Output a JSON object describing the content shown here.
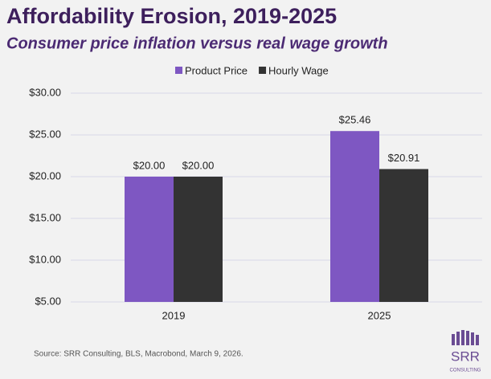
{
  "chart_data": {
    "type": "bar",
    "title": "Affordability Erosion, 2019-2025",
    "subtitle": "Consumer price inflation versus real wage growth",
    "categories": [
      "2019",
      "2025"
    ],
    "series": [
      {
        "name": "Product Price",
        "color": "#7e57c2",
        "values": [
          20.0,
          25.46
        ],
        "value_labels": [
          "$20.00",
          "$25.46"
        ]
      },
      {
        "name": "Hourly Wage",
        "color": "#333333",
        "values": [
          20.0,
          20.91
        ],
        "value_labels": [
          "$20.00",
          "$20.91"
        ]
      }
    ],
    "ylim": [
      5,
      30
    ],
    "yticks": [
      {
        "value": 5,
        "label": "$5.00"
      },
      {
        "value": 10,
        "label": "$10.00"
      },
      {
        "value": 15,
        "label": "$15.00"
      },
      {
        "value": 20,
        "label": "$20.00"
      },
      {
        "value": 25,
        "label": "$25.00"
      },
      {
        "value": 30,
        "label": "$30.00"
      }
    ],
    "grid": true,
    "legend": "top",
    "source": "Source: SRR Consulting, BLS, Macrobond, March 9, 2026.",
    "logo": {
      "name": "SRR",
      "tagline": "CONSULTING"
    }
  }
}
